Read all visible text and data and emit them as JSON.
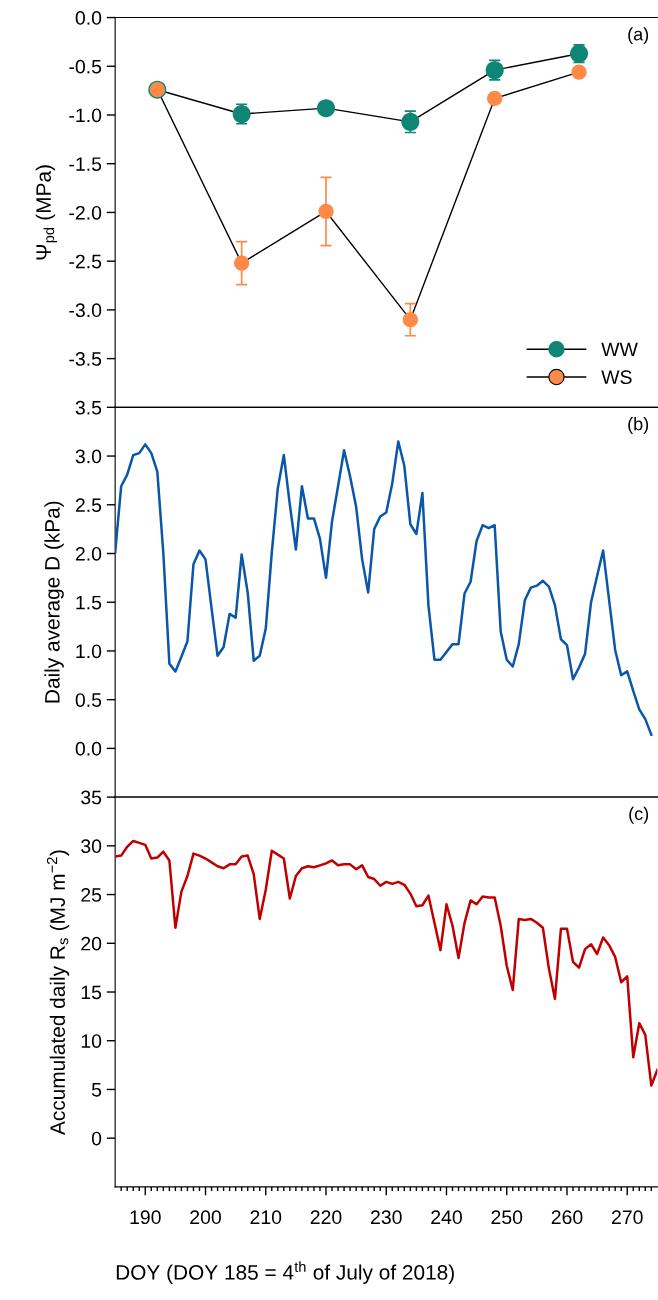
{
  "chart_data": [
    {
      "type": "line",
      "ylabel": "Ψ$_{pd}$ (MPa)",
      "x": [
        192,
        206,
        220,
        234,
        248,
        262
      ],
      "xlim": [
        185,
        275
      ],
      "xticks": [
        190,
        200,
        210,
        220,
        230,
        240,
        250,
        260,
        270
      ],
      "ylim": [
        -4.0,
        0.0
      ],
      "yticks": [
        {
          "value": 0,
          "label": "0.0"
        },
        -0.5,
        {
          "value": -1,
          "label": "-1.0"
        },
        -1.5,
        {
          "value": -2,
          "label": "-2.0"
        },
        -2.5,
        {
          "value": -3,
          "label": "-3.0"
        },
        -3.5
      ],
      "tick_labels": "y",
      "marker": "circle",
      "legend": "bottom right",
      "annotations": [
        "(a)"
      ],
      "series": [
        {
          "name": "WW",
          "color": "#0e8575",
          "values": [
            -0.74,
            -0.99,
            -0.93,
            -1.07,
            -0.54,
            -0.37
          ],
          "errors": [
            null,
            0.1,
            0.05,
            0.11,
            0.1,
            0.09
          ]
        },
        {
          "name": "WS",
          "color": "#fd8a46",
          "values": [
            -0.74,
            -2.52,
            -1.99,
            -3.1,
            -0.83,
            -0.56
          ],
          "errors": [
            0.04,
            0.22,
            0.35,
            0.165,
            0.02,
            0.04
          ]
        }
      ]
    },
    {
      "type": "line",
      "ylabel": "Daily average D (kPa)",
      "x": [
        185,
        186,
        187,
        188,
        189,
        190,
        191,
        192,
        193,
        194,
        195,
        196,
        197,
        198,
        199,
        200,
        201,
        202,
        203,
        204,
        205,
        206,
        207,
        208,
        209,
        210,
        211,
        212,
        213,
        214,
        215,
        216,
        217,
        218,
        219,
        220,
        221,
        222,
        223,
        224,
        225,
        226,
        227,
        228,
        229,
        230,
        231,
        232,
        233,
        234,
        235,
        236,
        237,
        238,
        239,
        240,
        241,
        242,
        243,
        244,
        245,
        246,
        247,
        248,
        249,
        250,
        251,
        252,
        253,
        254,
        255,
        256,
        257,
        258,
        259,
        260,
        261,
        262,
        263,
        264,
        265,
        266,
        267,
        268,
        269,
        270,
        271,
        272,
        273,
        274
      ],
      "xlim": [
        185,
        275
      ],
      "xticks": [
        190,
        200,
        210,
        220,
        230,
        240,
        250,
        260,
        270
      ],
      "ylim": [
        -0.5,
        3.5
      ],
      "yticks": [
        {
          "value": 0,
          "label": "0.0"
        },
        0.5,
        {
          "value": 1,
          "label": "1.0"
        },
        1.5,
        {
          "value": 2,
          "label": "2.0"
        },
        2.5,
        {
          "value": 3,
          "label": "3.0"
        },
        3.5
      ],
      "tick_labels": "y",
      "annotations": [
        "(b)"
      ],
      "series": [
        {
          "color": "#0a56a8",
          "values": [
            2.01,
            2.69,
            2.81,
            3.01,
            3.03,
            3.12,
            3.03,
            2.84,
            2.0,
            0.87,
            0.79,
            0.94,
            1.1,
            1.89,
            2.03,
            1.94,
            1.44,
            0.95,
            1.04,
            1.38,
            1.34,
            1.99,
            1.6,
            0.9,
            0.95,
            1.23,
            2.01,
            2.67,
            3.01,
            2.5,
            2.04,
            2.69,
            2.36,
            2.36,
            2.15,
            1.75,
            2.33,
            2.69,
            3.06,
            2.79,
            2.48,
            1.94,
            1.6,
            2.25,
            2.38,
            2.42,
            2.72,
            3.15,
            2.9,
            2.3,
            2.2,
            2.62,
            1.47,
            0.91,
            0.91,
            0.99,
            1.07,
            1.07,
            1.59,
            1.71,
            2.13,
            2.29,
            2.26,
            2.29,
            1.2,
            0.91,
            0.84,
            1.07,
            1.52,
            1.65,
            1.67,
            1.72,
            1.66,
            1.47,
            1.12,
            1.06,
            0.71,
            0.83,
            0.97,
            1.5,
            1.77,
            2.03,
            1.52,
            1.01,
            0.75,
            0.79,
            0.59,
            0.4,
            0.3,
            0.14
          ]
        }
      ]
    },
    {
      "type": "line",
      "ylabel": "Accumulated daily R$_{s}$ (MJ m$^{−2}$)",
      "xlabel": "DOY (DOY 185 = 4$^{th}$ of July of 2018)",
      "x": [
        185,
        186,
        187,
        188,
        189,
        190,
        191,
        192,
        193,
        194,
        195,
        196,
        197,
        198,
        199,
        200,
        201,
        202,
        203,
        204,
        205,
        206,
        207,
        208,
        209,
        210,
        211,
        212,
        213,
        214,
        215,
        216,
        217,
        218,
        219,
        220,
        221,
        222,
        223,
        224,
        225,
        226,
        227,
        228,
        229,
        230,
        231,
        232,
        233,
        234,
        235,
        236,
        237,
        238,
        239,
        240,
        241,
        242,
        243,
        244,
        245,
        246,
        247,
        248,
        249,
        250,
        251,
        252,
        253,
        254,
        255,
        256,
        257,
        258,
        259,
        260,
        261,
        262,
        263,
        264,
        265,
        266,
        267,
        268,
        269,
        270,
        271,
        272,
        273,
        274,
        275
      ],
      "xlim": [
        185,
        275
      ],
      "ylim": [
        -5,
        35
      ],
      "yticks": [
        0,
        5,
        10,
        15,
        20,
        25,
        30,
        35
      ],
      "annotations": [
        "(c)"
      ],
      "xticks": [
        {
          "value": 186,
          "label": null
        },
        {
          "value": 187,
          "label": null
        },
        {
          "value": 188,
          "label": null
        },
        {
          "value": 189,
          "label": null
        },
        190,
        {
          "value": 191,
          "label": null
        },
        {
          "value": 192,
          "label": null
        },
        {
          "value": 193,
          "label": null
        },
        {
          "value": 194,
          "label": null
        },
        {
          "value": 195,
          "label": null
        },
        {
          "value": 196,
          "label": null
        },
        {
          "value": 197,
          "label": null
        },
        {
          "value": 198,
          "label": null
        },
        {
          "value": 199,
          "label": null
        },
        200,
        {
          "value": 201,
          "label": null
        },
        {
          "value": 202,
          "label": null
        },
        {
          "value": 203,
          "label": null
        },
        {
          "value": 204,
          "label": null
        },
        {
          "value": 205,
          "label": null
        },
        {
          "value": 206,
          "label": null
        },
        {
          "value": 207,
          "label": null
        },
        {
          "value": 208,
          "label": null
        },
        {
          "value": 209,
          "label": null
        },
        210,
        {
          "value": 211,
          "label": null
        },
        {
          "value": 212,
          "label": null
        },
        {
          "value": 213,
          "label": null
        },
        {
          "value": 214,
          "label": null
        },
        {
          "value": 215,
          "label": null
        },
        {
          "value": 216,
          "label": null
        },
        {
          "value": 217,
          "label": null
        },
        {
          "value": 218,
          "label": null
        },
        {
          "value": 219,
          "label": null
        },
        220,
        {
          "value": 221,
          "label": null
        },
        {
          "value": 222,
          "label": null
        },
        {
          "value": 223,
          "label": null
        },
        {
          "value": 224,
          "label": null
        },
        {
          "value": 225,
          "label": null
        },
        {
          "value": 226,
          "label": null
        },
        {
          "value": 227,
          "label": null
        },
        {
          "value": 228,
          "label": null
        },
        {
          "value": 229,
          "label": null
        },
        230,
        {
          "value": 231,
          "label": null
        },
        {
          "value": 232,
          "label": null
        },
        {
          "value": 233,
          "label": null
        },
        {
          "value": 234,
          "label": null
        },
        {
          "value": 235,
          "label": null
        },
        {
          "value": 236,
          "label": null
        },
        {
          "value": 237,
          "label": null
        },
        {
          "value": 238,
          "label": null
        },
        {
          "value": 239,
          "label": null
        },
        240,
        {
          "value": 241,
          "label": null
        },
        {
          "value": 242,
          "label": null
        },
        {
          "value": 243,
          "label": null
        },
        {
          "value": 244,
          "label": null
        },
        {
          "value": 245,
          "label": null
        },
        {
          "value": 246,
          "label": null
        },
        {
          "value": 247,
          "label": null
        },
        {
          "value": 248,
          "label": null
        },
        {
          "value": 249,
          "label": null
        },
        250,
        {
          "value": 251,
          "label": null
        },
        {
          "value": 252,
          "label": null
        },
        {
          "value": 253,
          "label": null
        },
        {
          "value": 254,
          "label": null
        },
        {
          "value": 255,
          "label": null
        },
        {
          "value": 256,
          "label": null
        },
        {
          "value": 257,
          "label": null
        },
        {
          "value": 258,
          "label": null
        },
        {
          "value": 259,
          "label": null
        },
        260,
        {
          "value": 261,
          "label": null
        },
        {
          "value": 262,
          "label": null
        },
        {
          "value": 263,
          "label": null
        },
        {
          "value": 264,
          "label": null
        },
        {
          "value": 265,
          "label": null
        },
        {
          "value": 266,
          "label": null
        },
        {
          "value": 267,
          "label": null
        },
        {
          "value": 268,
          "label": null
        },
        {
          "value": 269,
          "label": null
        },
        270,
        {
          "value": 271,
          "label": null
        },
        {
          "value": 272,
          "label": null
        },
        {
          "value": 273,
          "label": null
        },
        {
          "value": 274,
          "label": null
        }
      ],
      "series": [
        {
          "color": "#c00000",
          "values": [
            28.9,
            29.0,
            29.9,
            30.5,
            30.3,
            30.1,
            28.7,
            28.8,
            29.4,
            28.5,
            21.6,
            25.3,
            26.9,
            29.2,
            29.0,
            28.7,
            28.3,
            27.9,
            27.7,
            28.1,
            28.1,
            28.9,
            29.0,
            27.1,
            22.5,
            25.5,
            29.5,
            29.1,
            28.7,
            24.6,
            26.9,
            27.7,
            27.9,
            27.8,
            28.0,
            28.2,
            28.5,
            28.0,
            28.1,
            28.1,
            27.6,
            28.0,
            26.8,
            26.6,
            25.9,
            26.3,
            26.1,
            26.3,
            26.0,
            25.1,
            23.8,
            23.9,
            24.9,
            22.1,
            19.3,
            24.0,
            21.8,
            18.5,
            22.1,
            24.4,
            24.0,
            24.8,
            24.7,
            24.7,
            21.8,
            17.7,
            15.2,
            22.5,
            22.4,
            22.5,
            22.1,
            21.6,
            17.4,
            14.3,
            21.5,
            21.5,
            18.1,
            17.5,
            19.4,
            19.9,
            18.9,
            20.6,
            19.8,
            18.6,
            16.0,
            16.6,
            8.3,
            11.8,
            10.6,
            5.4,
            7.0
          ]
        }
      ]
    }
  ]
}
